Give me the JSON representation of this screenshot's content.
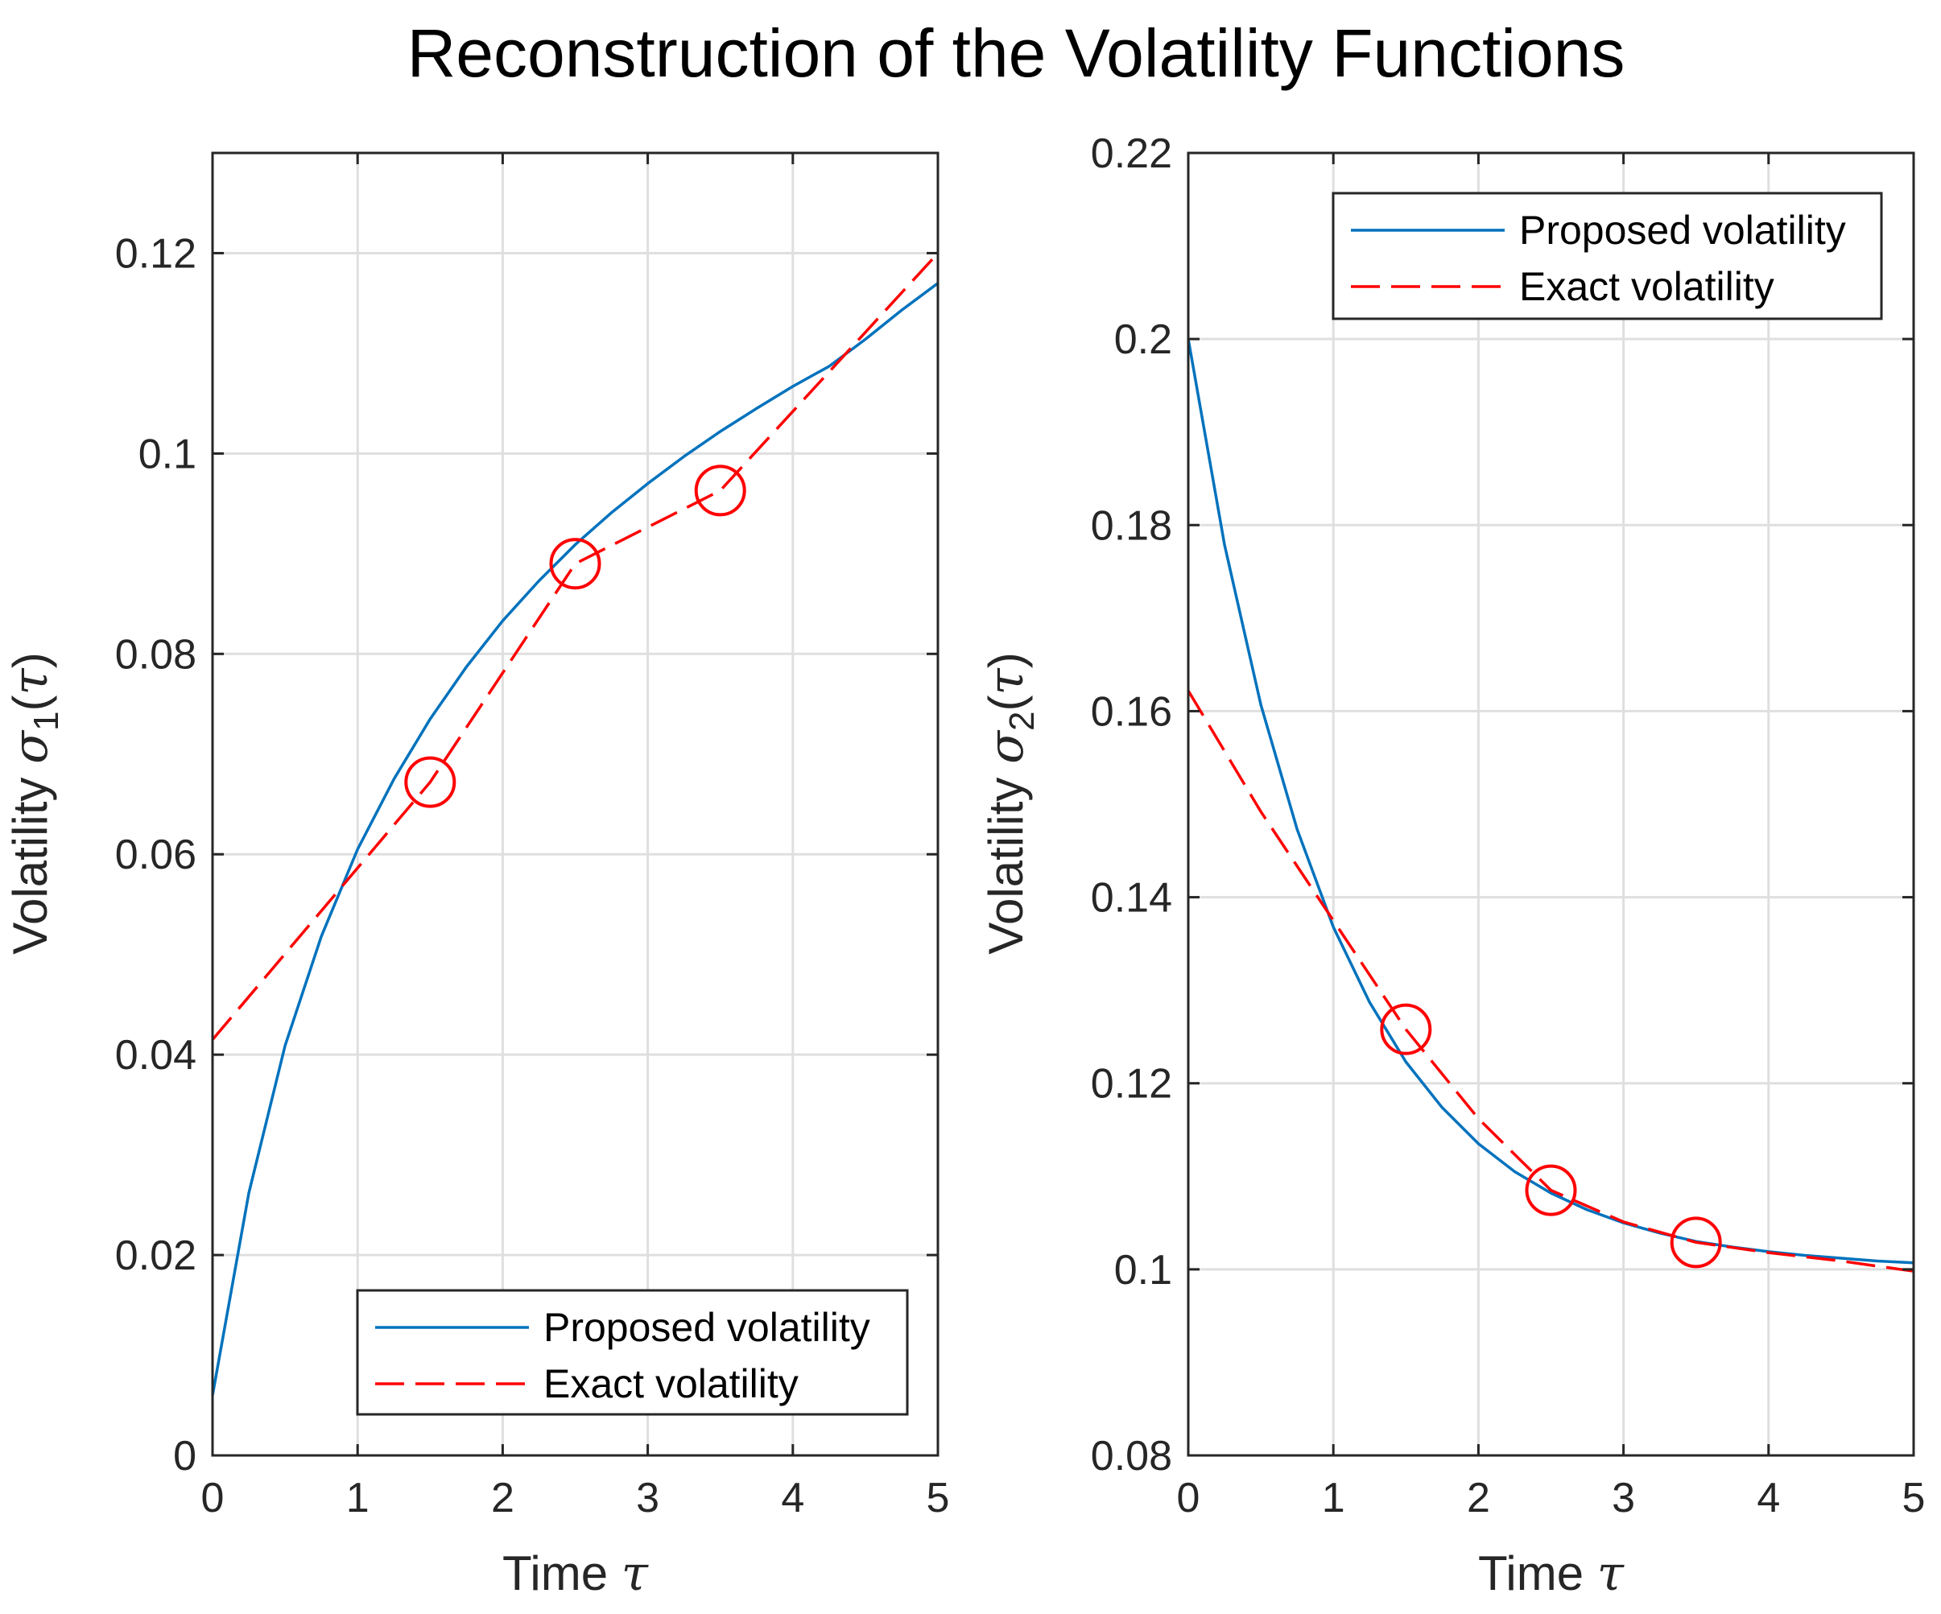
{
  "figure": {
    "title": "Reconstruction of the Volatility Functions"
  },
  "colors": {
    "proposed": "#0072BD",
    "exact": "#FF0000",
    "grid": "#DFDFDF",
    "axes": "#262626"
  },
  "chart_data": [
    {
      "type": "line",
      "panel": "left",
      "title": "",
      "xlabel": "Time",
      "x_symbol": "τ",
      "ylabel": "Volatility",
      "y_symbol": "σ",
      "y_subscript": "1",
      "y_arg_open": "(",
      "y_arg": "τ",
      "y_arg_close": ")",
      "xlim": [
        0,
        5
      ],
      "ylim": [
        0,
        0.13
      ],
      "xticks": [
        0,
        1,
        2,
        3,
        4,
        5
      ],
      "xtick_labels": [
        "0",
        "1",
        "2",
        "3",
        "4",
        "5"
      ],
      "yticks": [
        0,
        0.02,
        0.04,
        0.06,
        0.08,
        0.1,
        0.12
      ],
      "ytick_labels": [
        "0",
        "0.02",
        "0.04",
        "0.06",
        "0.08",
        "0.1",
        "0.12"
      ],
      "grid": true,
      "legend_position": "bottom-right",
      "series": [
        {
          "name": "Proposed volatility",
          "style": "solid",
          "x": [
            0,
            0.25,
            0.5,
            0.75,
            1,
            1.25,
            1.5,
            1.75,
            2,
            2.25,
            2.5,
            2.75,
            3,
            3.25,
            3.5,
            3.75,
            4,
            4.25,
            4.5,
            4.75,
            5
          ],
          "y": [
            0.006,
            0.0262,
            0.0409,
            0.0518,
            0.0605,
            0.0675,
            0.0735,
            0.0787,
            0.0833,
            0.0873,
            0.0909,
            0.0941,
            0.097,
            0.0997,
            0.1022,
            0.1045,
            0.1067,
            0.1087,
            0.1114,
            0.1143,
            0.117
          ]
        },
        {
          "name": "Exact volatility",
          "style": "dashed",
          "x": [
            0,
            1.5,
            2.5,
            3.5,
            5
          ],
          "y": [
            0.0415,
            0.0672,
            0.089,
            0.0963,
            0.12
          ],
          "markers": {
            "shape": "circle",
            "x": [
              1.5,
              2.5,
              3.5
            ],
            "y": [
              0.0672,
              0.089,
              0.0963
            ]
          }
        }
      ]
    },
    {
      "type": "line",
      "panel": "right",
      "title": "",
      "xlabel": "Time",
      "x_symbol": "τ",
      "ylabel": "Volatility",
      "y_symbol": "σ",
      "y_subscript": "2",
      "y_arg_open": "(",
      "y_arg": "τ",
      "y_arg_close": ")",
      "xlim": [
        0,
        5
      ],
      "ylim": [
        0.08,
        0.22
      ],
      "xticks": [
        0,
        1,
        2,
        3,
        4,
        5
      ],
      "xtick_labels": [
        "0",
        "1",
        "2",
        "3",
        "4",
        "5"
      ],
      "yticks": [
        0.08,
        0.1,
        0.12,
        0.14,
        0.16,
        0.18,
        0.2,
        0.22
      ],
      "ytick_labels": [
        "0.08",
        "0.1",
        "0.12",
        "0.14",
        "0.16",
        "0.18",
        "0.2",
        "0.22"
      ],
      "grid": true,
      "legend_position": "top-right",
      "series": [
        {
          "name": "Proposed volatility",
          "style": "solid",
          "x": [
            0,
            0.25,
            0.5,
            0.75,
            1,
            1.25,
            1.5,
            1.75,
            2,
            2.25,
            2.5,
            2.75,
            3,
            3.25,
            3.5,
            3.75,
            4,
            4.25,
            4.5,
            4.75,
            5
          ],
          "y": [
            0.2,
            0.1779,
            0.1607,
            0.1473,
            0.1368,
            0.1287,
            0.1223,
            0.1174,
            0.1135,
            0.1105,
            0.1082,
            0.1064,
            0.105,
            0.1039,
            0.103,
            0.1024,
            0.1019,
            0.1015,
            0.1012,
            0.1009,
            0.1007
          ]
        },
        {
          "name": "Exact volatility",
          "style": "dashed",
          "x": [
            0,
            0.5,
            1,
            1.5,
            2,
            2.5,
            3,
            3.5,
            4,
            4.5,
            5
          ],
          "y": [
            0.1622,
            0.1492,
            0.1375,
            0.1258,
            0.1162,
            0.1085,
            0.1051,
            0.1029,
            0.1018,
            0.1009,
            0.0998
          ],
          "markers": {
            "shape": "circle",
            "x": [
              1.5,
              2.5,
              3.5
            ],
            "y": [
              0.1258,
              0.1085,
              0.1029
            ]
          }
        }
      ]
    }
  ]
}
